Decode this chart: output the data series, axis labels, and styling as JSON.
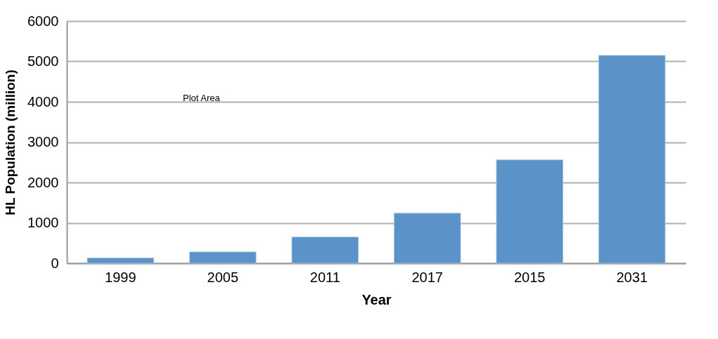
{
  "chart_data": {
    "type": "bar",
    "xlabel": "Year",
    "ylabel": "HL Population (million)",
    "categories": [
      "1999",
      "2005",
      "2011",
      "2017",
      "2015",
      "2031"
    ],
    "values": [
      130,
      280,
      650,
      1240,
      2560,
      5150
    ],
    "color": "#5b93c8",
    "ylim": [
      0,
      6000
    ],
    "yticks": [
      0,
      1000,
      2000,
      3000,
      4000,
      5000,
      6000
    ],
    "grid": "y",
    "annotations": [
      "Plot Area"
    ]
  }
}
